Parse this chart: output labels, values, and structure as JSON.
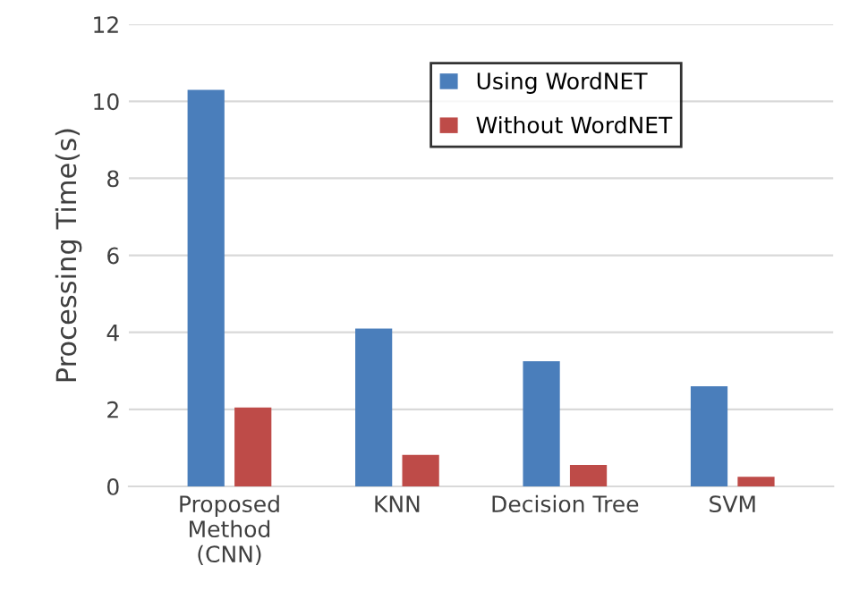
{
  "chart_data": {
    "type": "bar",
    "ylabel": "Processing Time(s)",
    "categories": [
      "Proposed\nMethod\n(CNN)",
      "KNN",
      "Decision Tree",
      "SVM"
    ],
    "series": [
      {
        "name": "Using WordNET",
        "color": "#4a7ebb",
        "values": [
          10.3,
          4.1,
          3.25,
          2.6
        ]
      },
      {
        "name": "Without WordNET",
        "color": "#be4b48",
        "values": [
          2.05,
          0.82,
          0.56,
          0.25
        ]
      }
    ],
    "ylim": [
      0,
      12
    ],
    "yticks": [
      0,
      2,
      4,
      6,
      8,
      10,
      12
    ],
    "grid": "y",
    "legend": "top right"
  }
}
